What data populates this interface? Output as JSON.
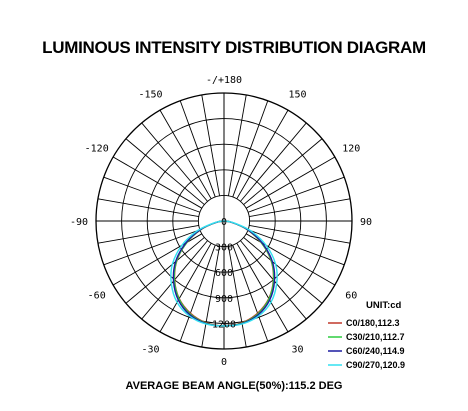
{
  "title": "LUMINOUS INTENSITY DISTRIBUTION DIAGRAM",
  "footer": "AVERAGE BEAM ANGLE(50%):115.2 DEG",
  "legend": {
    "unit": "UNIT:cd"
  },
  "chart_data": {
    "type": "polar",
    "title": "LUMINOUS INTENSITY DISTRIBUTION DIAGRAM",
    "angle_labels": [
      {
        "angle": 180,
        "text": "-/+180"
      },
      {
        "angle": -150,
        "text": "-150"
      },
      {
        "angle": 150,
        "text": "150"
      },
      {
        "angle": -120,
        "text": "-120"
      },
      {
        "angle": 120,
        "text": "120"
      },
      {
        "angle": -90,
        "text": "-90"
      },
      {
        "angle": 90,
        "text": "90"
      },
      {
        "angle": -60,
        "text": "-60"
      },
      {
        "angle": 60,
        "text": "60"
      },
      {
        "angle": -30,
        "text": "-30"
      },
      {
        "angle": 30,
        "text": "30"
      },
      {
        "angle": 0,
        "text": "0"
      }
    ],
    "radial_ticks": [
      0,
      300,
      600,
      900,
      1200
    ],
    "radial_max": 1500,
    "angle_step": 10,
    "series": [
      {
        "name": "C0/180,112.3",
        "color": "#c0392b",
        "angles": [
          0,
          10,
          20,
          30,
          40,
          50,
          60,
          70,
          80,
          90
        ],
        "values": [
          1230,
          1210,
          1150,
          1050,
          900,
          720,
          500,
          280,
          90,
          0
        ]
      },
      {
        "name": "C30/210,112.7",
        "color": "#2ecc40",
        "angles": [
          0,
          10,
          20,
          30,
          40,
          50,
          60,
          70,
          80,
          90
        ],
        "values": [
          1230,
          1215,
          1160,
          1055,
          905,
          725,
          505,
          285,
          92,
          0
        ]
      },
      {
        "name": "C60/240,114.9",
        "color": "#1a1aa0",
        "angles": [
          0,
          10,
          20,
          30,
          40,
          50,
          60,
          70,
          80,
          90
        ],
        "values": [
          1230,
          1220,
          1170,
          1070,
          920,
          740,
          520,
          295,
          95,
          0
        ]
      },
      {
        "name": "C90/270,120.9",
        "color": "#33e0f0",
        "angles": [
          0,
          10,
          20,
          30,
          40,
          50,
          60,
          70,
          80,
          90
        ],
        "values": [
          1230,
          1225,
          1185,
          1100,
          960,
          790,
          570,
          330,
          110,
          0
        ]
      }
    ]
  }
}
